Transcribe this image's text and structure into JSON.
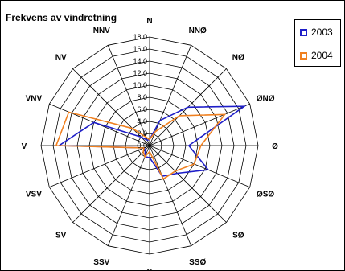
{
  "chart_data": {
    "type": "radar",
    "title": "Frekvens av vindretning",
    "categories": [
      "N",
      "NNØ",
      "NØ",
      "ØNØ",
      "Ø",
      "ØSØ",
      "SØ",
      "SSØ",
      "S",
      "SSV",
      "SV",
      "VSV",
      "V",
      "VNV",
      "NV",
      "NNV"
    ],
    "rlim": [
      0,
      18
    ],
    "ticks": [
      "0.0",
      "2.0",
      "4.0",
      "6.0",
      "8.0",
      "10.0",
      "12.0",
      "14.0",
      "16.0",
      "18.0"
    ],
    "grid": true,
    "legend_position": "top-right",
    "series": [
      {
        "name": "2003",
        "color": "#1e1ec8",
        "values": [
          1.0,
          4.5,
          9.0,
          17.0,
          6.5,
          10.5,
          6.5,
          5.5,
          2.0,
          2.0,
          1.0,
          1.0,
          15.0,
          10.0,
          2.0,
          1.0
        ]
      },
      {
        "name": "2004",
        "color": "#f08020",
        "values": [
          1.0,
          2.5,
          7.0,
          13.5,
          8.5,
          8.0,
          6.0,
          6.0,
          1.0,
          2.0,
          1.5,
          1.0,
          15.5,
          14.5,
          4.0,
          1.5
        ]
      }
    ]
  }
}
